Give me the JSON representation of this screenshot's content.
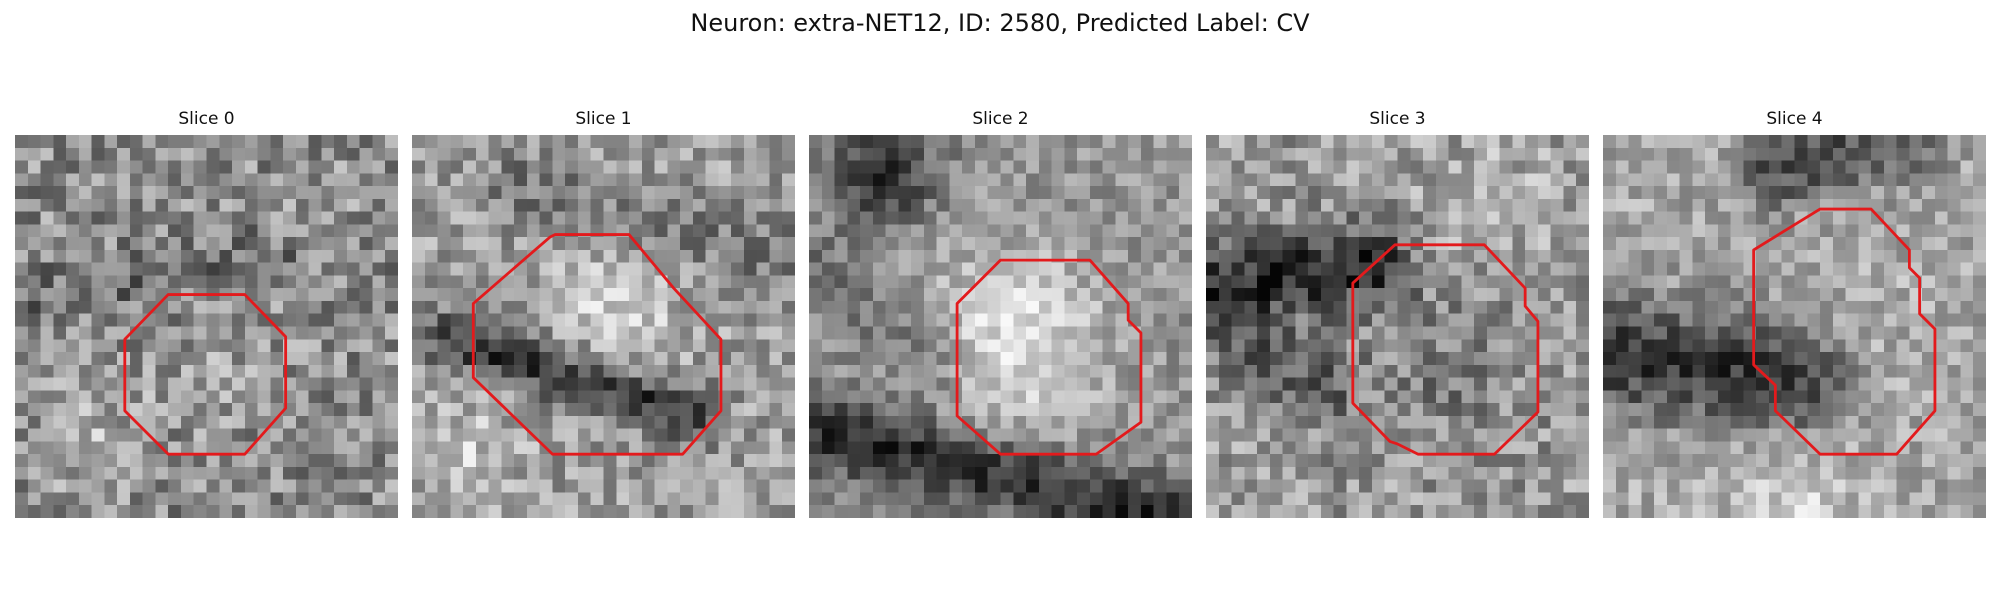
{
  "title": "Neuron: extra-NET12, ID: 2580, Predicted Label: CV",
  "colors": {
    "contour": "#e31a1c",
    "colormap": "gray"
  },
  "slices": [
    {
      "label": "Slice 0"
    },
    {
      "label": "Slice 1"
    },
    {
      "label": "Slice 2"
    },
    {
      "label": "Slice 3"
    },
    {
      "label": "Slice 4"
    }
  ]
}
